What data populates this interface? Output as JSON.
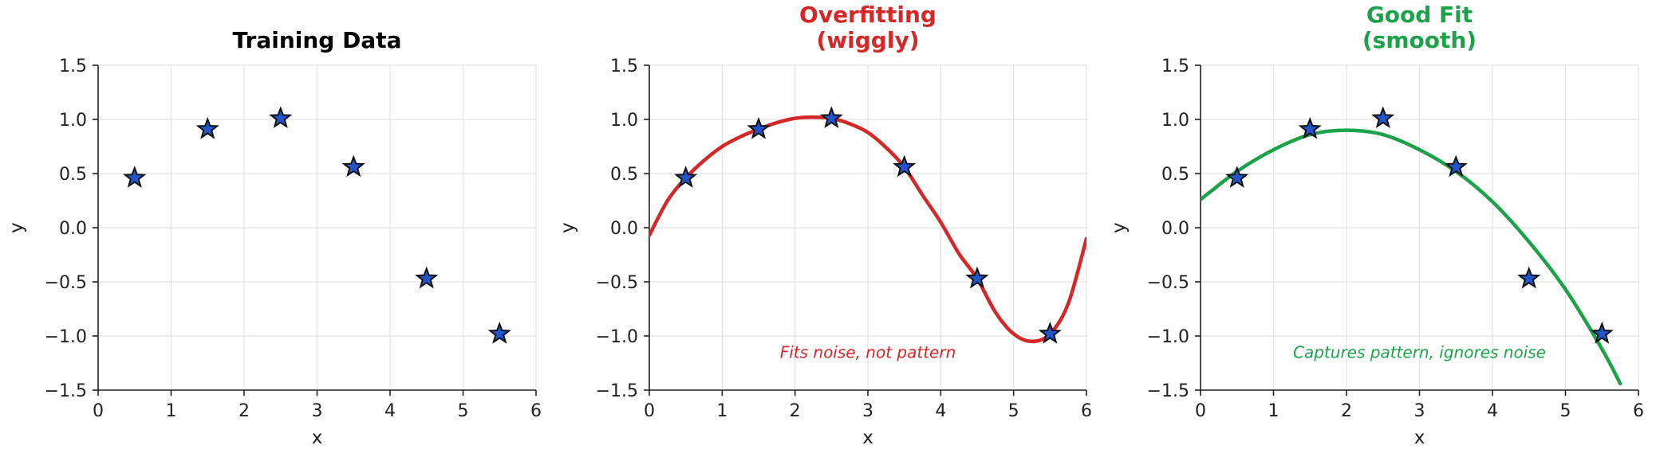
{
  "chart_data": [
    {
      "type": "scatter",
      "title": "Training Data",
      "title_color": "#000000",
      "xlabel": "x",
      "ylabel": "y",
      "xlim": [
        0,
        6
      ],
      "ylim": [
        -1.5,
        1.5
      ],
      "xticks": [
        "0",
        "1",
        "2",
        "3",
        "4",
        "5",
        "6"
      ],
      "yticks": [
        "1.5",
        "1.0",
        "0.5",
        "0.0",
        "−0.5",
        "−1.0",
        "−1.5"
      ],
      "grid": true,
      "points": {
        "x": [
          0.5,
          1.5,
          2.5,
          3.5,
          4.5,
          5.5
        ],
        "y": [
          0.46,
          0.91,
          1.01,
          0.56,
          -0.47,
          -0.98
        ]
      },
      "marker": "star",
      "marker_color": "#2255cc",
      "curve": null,
      "annotation": ""
    },
    {
      "type": "line",
      "title": "Overfitting\n(wiggly)",
      "title_color": "#d62728",
      "xlabel": "x",
      "ylabel": "y",
      "xlim": [
        0,
        6
      ],
      "ylim": [
        -1.5,
        1.5
      ],
      "xticks": [
        "0",
        "1",
        "2",
        "3",
        "4",
        "5",
        "6"
      ],
      "yticks": [
        "1.5",
        "1.0",
        "0.5",
        "0.0",
        "−0.5",
        "−1.0",
        "−1.5"
      ],
      "grid": true,
      "points": {
        "x": [
          0.5,
          1.5,
          2.5,
          3.5,
          4.5,
          5.5
        ],
        "y": [
          0.46,
          0.91,
          1.01,
          0.56,
          -0.47,
          -0.98
        ]
      },
      "marker": "star",
      "marker_color": "#2255cc",
      "curve": {
        "color": "#d62728",
        "x": [
          0,
          0.25,
          0.5,
          0.75,
          1,
          1.25,
          1.5,
          1.75,
          2,
          2.25,
          2.5,
          2.75,
          3,
          3.25,
          3.5,
          3.75,
          4,
          4.25,
          4.5,
          4.75,
          5,
          5.25,
          5.5,
          5.75,
          6
        ],
        "y": [
          -0.07,
          0.25,
          0.46,
          0.62,
          0.75,
          0.84,
          0.91,
          0.97,
          1.01,
          1.02,
          1.01,
          0.96,
          0.88,
          0.74,
          0.56,
          0.3,
          0.05,
          -0.24,
          -0.47,
          -0.78,
          -0.98,
          -1.05,
          -0.98,
          -0.7,
          -0.1
        ]
      },
      "annotation": "Fits noise, not pattern",
      "annotation_pos": {
        "x": 3,
        "y": -1.15
      }
    },
    {
      "type": "line",
      "title": "Good Fit\n(smooth)",
      "title_color": "#1ca34a",
      "xlabel": "x",
      "ylabel": "y",
      "xlim": [
        0,
        6
      ],
      "ylim": [
        -1.5,
        1.5
      ],
      "xticks": [
        "0",
        "1",
        "2",
        "3",
        "4",
        "5",
        "6"
      ],
      "yticks": [
        "1.5",
        "1.0",
        "0.5",
        "0.0",
        "−0.5",
        "−1.0",
        "−1.5"
      ],
      "grid": true,
      "points": {
        "x": [
          0.5,
          1.5,
          2.5,
          3.5,
          4.5,
          5.5
        ],
        "y": [
          0.46,
          0.91,
          1.01,
          0.56,
          -0.47,
          -0.98
        ]
      },
      "marker": "star",
      "marker_color": "#2255cc",
      "curve": {
        "color": "#1ca34a",
        "x": [
          0,
          0.5,
          1,
          1.5,
          2,
          2.5,
          3,
          3.5,
          4,
          4.5,
          5,
          5.5,
          5.75
        ],
        "y": [
          0.26,
          0.52,
          0.72,
          0.86,
          0.9,
          0.86,
          0.72,
          0.52,
          0.24,
          -0.13,
          -0.57,
          -1.12,
          -1.44
        ]
      },
      "annotation": "Captures pattern, ignores noise",
      "annotation_pos": {
        "x": 3,
        "y": -1.15
      }
    }
  ]
}
